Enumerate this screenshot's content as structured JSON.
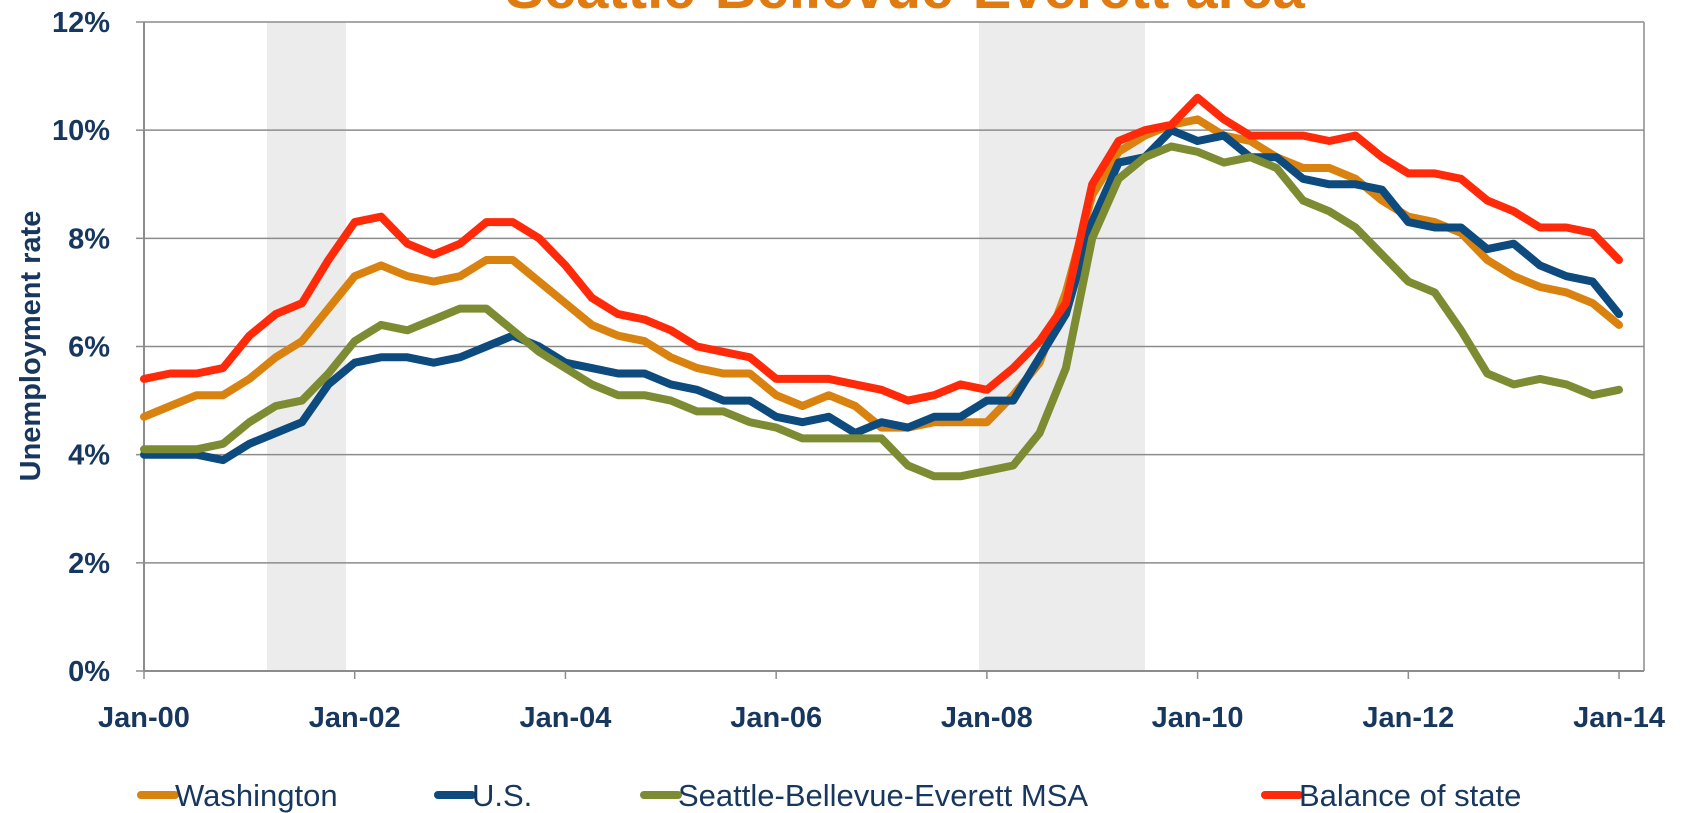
{
  "chart_data": {
    "type": "line",
    "title": "Seattle-Bellevue-Everett area",
    "y_label": "Unemployment rate",
    "categories": [
      "Jan-00",
      null,
      null,
      null,
      null,
      null,
      null,
      null,
      "Jan-02",
      null,
      null,
      null,
      null,
      null,
      null,
      null,
      "Jan-04",
      null,
      null,
      null,
      null,
      null,
      null,
      null,
      "Jan-06",
      null,
      null,
      null,
      null,
      null,
      null,
      null,
      "Jan-08",
      null,
      null,
      null,
      null,
      null,
      null,
      null,
      "Jan-10",
      null,
      null,
      null,
      null,
      null,
      null,
      null,
      "Jan-12",
      null,
      null,
      null,
      null,
      null,
      null,
      null,
      "Jan-14"
    ],
    "series": [
      {
        "name": "Washington",
        "color": "#d9820f",
        "values": [
          4.7,
          4.9,
          5.1,
          5.1,
          5.4,
          5.8,
          6.1,
          6.7,
          7.3,
          7.5,
          7.3,
          7.2,
          7.3,
          7.6,
          7.6,
          7.2,
          6.8,
          6.4,
          6.2,
          6.1,
          5.8,
          5.6,
          5.5,
          5.5,
          5.1,
          4.9,
          5.1,
          4.9,
          4.5,
          4.5,
          4.6,
          4.6,
          4.6,
          5.1,
          5.7,
          7.0,
          8.8,
          9.6,
          9.9,
          10.1,
          10.2,
          9.9,
          9.8,
          9.5,
          9.3,
          9.3,
          9.1,
          8.7,
          8.4,
          8.3,
          8.1,
          7.6,
          7.3,
          7.1,
          7.0,
          6.8,
          6.4
        ]
      },
      {
        "name": "U.S.",
        "color": "#0d4a7d",
        "values": [
          4.0,
          4.0,
          4.0,
          3.9,
          4.2,
          4.4,
          4.6,
          5.3,
          5.7,
          5.8,
          5.8,
          5.7,
          5.8,
          6.0,
          6.2,
          6.0,
          5.7,
          5.6,
          5.5,
          5.5,
          5.3,
          5.2,
          5.0,
          5.0,
          4.7,
          4.6,
          4.7,
          4.4,
          4.6,
          4.5,
          4.7,
          4.7,
          5.0,
          5.0,
          5.8,
          6.6,
          8.3,
          9.4,
          9.5,
          10.0,
          9.8,
          9.9,
          9.5,
          9.5,
          9.1,
          9.0,
          9.0,
          8.9,
          8.3,
          8.2,
          8.2,
          7.8,
          7.9,
          7.5,
          7.3,
          7.2,
          6.6
        ]
      },
      {
        "name": "Seattle-Bellevue-Everett MSA",
        "color": "#7d8c32",
        "values": [
          4.1,
          4.1,
          4.1,
          4.2,
          4.6,
          4.9,
          5.0,
          5.5,
          6.1,
          6.4,
          6.3,
          6.5,
          6.7,
          6.7,
          6.3,
          5.9,
          5.6,
          5.3,
          5.1,
          5.1,
          5.0,
          4.8,
          4.8,
          4.6,
          4.5,
          4.3,
          4.3,
          4.3,
          4.3,
          3.8,
          3.6,
          3.6,
          3.7,
          3.8,
          4.4,
          5.6,
          8.0,
          9.1,
          9.5,
          9.7,
          9.6,
          9.4,
          9.5,
          9.3,
          8.7,
          8.5,
          8.2,
          7.7,
          7.2,
          7.0,
          6.3,
          5.5,
          5.3,
          5.4,
          5.3,
          5.1,
          5.2
        ]
      },
      {
        "name": "Balance of state",
        "color": "#ff2a0a",
        "values": [
          5.4,
          5.5,
          5.5,
          5.6,
          6.2,
          6.6,
          6.8,
          7.6,
          8.3,
          8.4,
          7.9,
          7.7,
          7.9,
          8.3,
          8.3,
          8.0,
          7.5,
          6.9,
          6.6,
          6.5,
          6.3,
          6.0,
          5.9,
          5.8,
          5.4,
          5.4,
          5.4,
          5.3,
          5.2,
          5.0,
          5.1,
          5.3,
          5.2,
          5.6,
          6.1,
          6.8,
          9.0,
          9.8,
          10.0,
          10.1,
          10.6,
          10.2,
          9.9,
          9.9,
          9.9,
          9.8,
          9.9,
          9.5,
          9.2,
          9.2,
          9.1,
          8.7,
          8.5,
          8.2,
          8.2,
          8.1,
          7.6
        ]
      }
    ],
    "ylim": [
      0,
      12
    ],
    "yticks": [
      {
        "value": 0,
        "label": "0%"
      },
      {
        "value": 2,
        "label": "2%"
      },
      {
        "value": 4,
        "label": "4%"
      },
      {
        "value": 6,
        "label": "6%"
      },
      {
        "value": 8,
        "label": "8%"
      },
      {
        "value": 10,
        "label": "10%"
      },
      {
        "value": 12,
        "label": "12%"
      }
    ],
    "grid": true,
    "legend": "bottom"
  }
}
